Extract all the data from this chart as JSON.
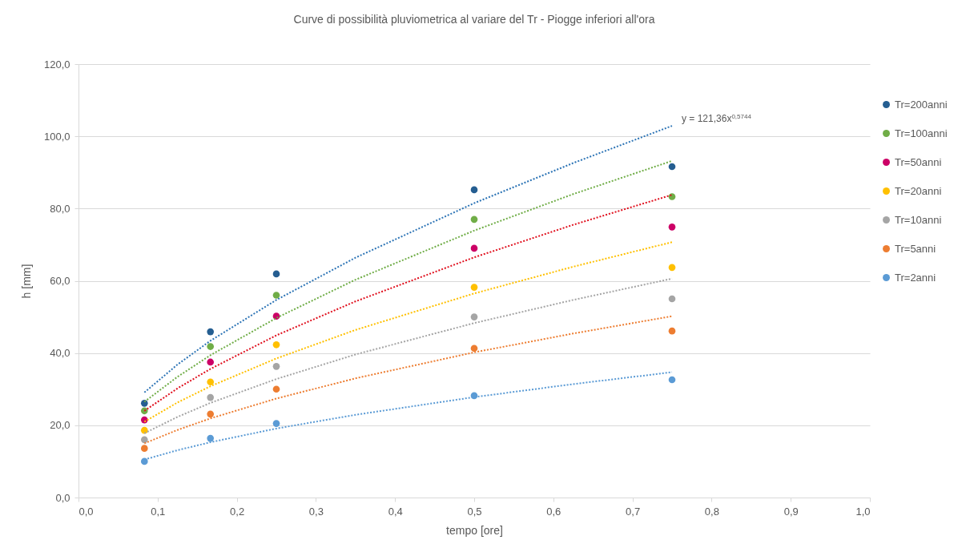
{
  "chart_data": {
    "type": "scatter",
    "title": "Curve di possibilità pluviometrica al variare del Tr - Piogge inferiori all'ora",
    "xlabel": "tempo [ore]",
    "ylabel": "h [mm]",
    "x": [
      0.0833,
      0.1667,
      0.25,
      0.5,
      0.75
    ],
    "series": [
      {
        "name": "Tr=200anni",
        "color": "#255e91",
        "values": [
          26.1,
          45.9,
          61.9,
          85.2,
          91.6
        ]
      },
      {
        "name": "Tr=100anni",
        "color": "#70ad47",
        "values": [
          24.0,
          41.8,
          56.0,
          77.0,
          83.3
        ]
      },
      {
        "name": "Tr=50anni",
        "color": "#cc0066",
        "values": [
          21.5,
          37.5,
          50.2,
          69.0,
          74.9
        ]
      },
      {
        "name": "Tr=20anni",
        "color": "#ffc000",
        "values": [
          18.6,
          32.0,
          42.3,
          58.2,
          63.7
        ]
      },
      {
        "name": "Tr=10anni",
        "color": "#a5a5a5",
        "values": [
          16.0,
          27.7,
          36.3,
          50.0,
          55.0
        ]
      },
      {
        "name": "Tr=5anni",
        "color": "#ed7d31",
        "values": [
          13.6,
          23.1,
          30.0,
          41.3,
          46.1
        ]
      },
      {
        "name": "Tr=2anni",
        "color": "#5b9bd5",
        "values": [
          10.0,
          16.4,
          20.5,
          28.2,
          32.6
        ]
      },
      {
        "type": "line",
        "line_style": "dotted",
        "marker": "none",
        "color": "#2e75b6",
        "x": [
          0.0833,
          0.125,
          0.1667,
          0.25,
          0.35,
          0.5,
          0.625,
          0.75
        ],
        "values": [
          29.1,
          36.8,
          43.4,
          54.7,
          66.4,
          81.5,
          92.6,
          102.9
        ]
      },
      {
        "type": "line",
        "line_style": "dotted",
        "marker": "none",
        "color": "#70ad47",
        "x": [
          0.0833,
          0.125,
          0.1667,
          0.25,
          0.35,
          0.5,
          0.625,
          0.75
        ],
        "values": [
          26.5,
          33.4,
          39.4,
          49.7,
          60.3,
          73.9,
          84.0,
          93.2
        ]
      },
      {
        "type": "line",
        "line_style": "dotted",
        "marker": "none",
        "color": "#e0101e",
        "x": [
          0.0833,
          0.125,
          0.1667,
          0.25,
          0.35,
          0.5,
          0.625,
          0.75
        ],
        "values": [
          24.0,
          30.2,
          35.6,
          44.9,
          54.3,
          66.5,
          75.5,
          83.8
        ]
      },
      {
        "type": "line",
        "line_style": "dotted",
        "marker": "none",
        "color": "#ffc000",
        "x": [
          0.0833,
          0.125,
          0.1667,
          0.25,
          0.35,
          0.5,
          0.625,
          0.75
        ],
        "values": [
          21.0,
          26.3,
          30.8,
          38.5,
          46.4,
          56.5,
          63.9,
          70.7
        ]
      },
      {
        "type": "line",
        "line_style": "dotted",
        "marker": "none",
        "color": "#a5a5a5",
        "x": [
          0.0833,
          0.125,
          0.1667,
          0.25,
          0.35,
          0.5,
          0.625,
          0.75
        ],
        "values": [
          17.8,
          22.3,
          26.2,
          32.8,
          39.6,
          48.3,
          54.7,
          60.6
        ]
      },
      {
        "type": "line",
        "line_style": "dotted",
        "marker": "none",
        "color": "#ed7d31",
        "x": [
          0.0833,
          0.125,
          0.1667,
          0.25,
          0.35,
          0.5,
          0.625,
          0.75
        ],
        "values": [
          15.0,
          18.7,
          21.9,
          27.4,
          33.0,
          40.2,
          45.4,
          50.2
        ]
      },
      {
        "type": "line",
        "line_style": "dotted",
        "marker": "none",
        "color": "#5b9bd5",
        "x": [
          0.0833,
          0.125,
          0.1667,
          0.25,
          0.35,
          0.5,
          0.625,
          0.75
        ],
        "values": [
          10.5,
          13.1,
          15.3,
          19.1,
          22.9,
          27.8,
          31.4,
          34.7
        ]
      }
    ],
    "xlim": [
      0,
      1
    ],
    "xticks": [
      {
        "value": 0,
        "label": "0,0"
      },
      {
        "value": 0.1,
        "label": "0,1"
      },
      {
        "value": 0.2,
        "label": "0,2"
      },
      {
        "value": 0.3,
        "label": "0,3"
      },
      {
        "value": 0.4,
        "label": "0,4"
      },
      {
        "value": 0.5,
        "label": "0,5"
      },
      {
        "value": 0.6,
        "label": "0,6"
      },
      {
        "value": 0.7,
        "label": "0,7"
      },
      {
        "value": 0.8,
        "label": "0,8"
      },
      {
        "value": 0.9,
        "label": "0,9"
      },
      {
        "value": 1,
        "label": "1,0"
      }
    ],
    "ylim": [
      0,
      120
    ],
    "yticks": [
      {
        "value": 0,
        "label": "0,0"
      },
      {
        "value": 20,
        "label": "20,0"
      },
      {
        "value": 40,
        "label": "40,0"
      },
      {
        "value": 60,
        "label": "60,0"
      },
      {
        "value": 80,
        "label": "80,0"
      },
      {
        "value": 100,
        "label": "100,0"
      },
      {
        "value": 120,
        "label": "120,0"
      }
    ],
    "annotations": [
      {
        "text": "y = 121,36x$^{0,5744}$",
        "x": 0.75,
        "y": 102.9
      }
    ],
    "grid": "y",
    "legend": "right",
    "marker": "circle"
  }
}
